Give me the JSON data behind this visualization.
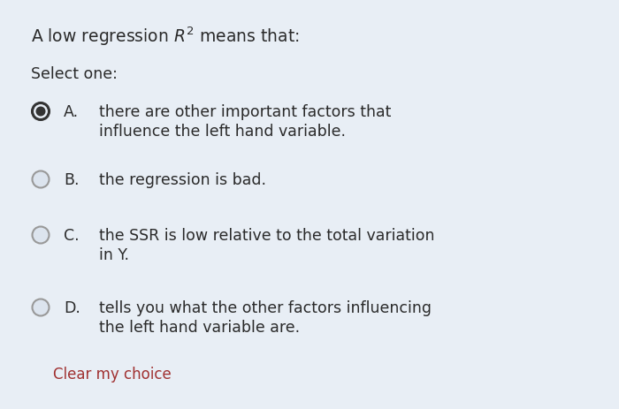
{
  "background_color": "#e8eef5",
  "title_part1": "A low regression ",
  "title_math": "$R^2$",
  "title_part2": " means that:",
  "select_one": "Select one:",
  "options": [
    {
      "letter": "A.",
      "text_line1": "there are other important factors that",
      "text_line2": "influence the left hand variable.",
      "selected": true
    },
    {
      "letter": "B.",
      "text_line1": "the regression is bad.",
      "text_line2": null,
      "selected": false
    },
    {
      "letter": "C.",
      "text_line1": "the SSR is low relative to the total variation",
      "text_line2": "in Y.",
      "selected": false
    },
    {
      "letter": "D.",
      "text_line1": "tells you what the other factors influencing",
      "text_line2": "the left hand variable are.",
      "selected": false
    }
  ],
  "clear_choice_text": "Clear my choice",
  "clear_choice_color": "#a03030",
  "font_size_title": 13.5,
  "font_size_body": 12.5,
  "font_size_clear": 12,
  "text_color": "#2a2a2a",
  "radio_unselected_fill": "#dce4ee",
  "radio_unselected_edge": "#999999",
  "radio_selected_outer_fill": "#e8eef5",
  "radio_selected_outer_edge": "#333333",
  "radio_selected_inner_fill": "#333333"
}
